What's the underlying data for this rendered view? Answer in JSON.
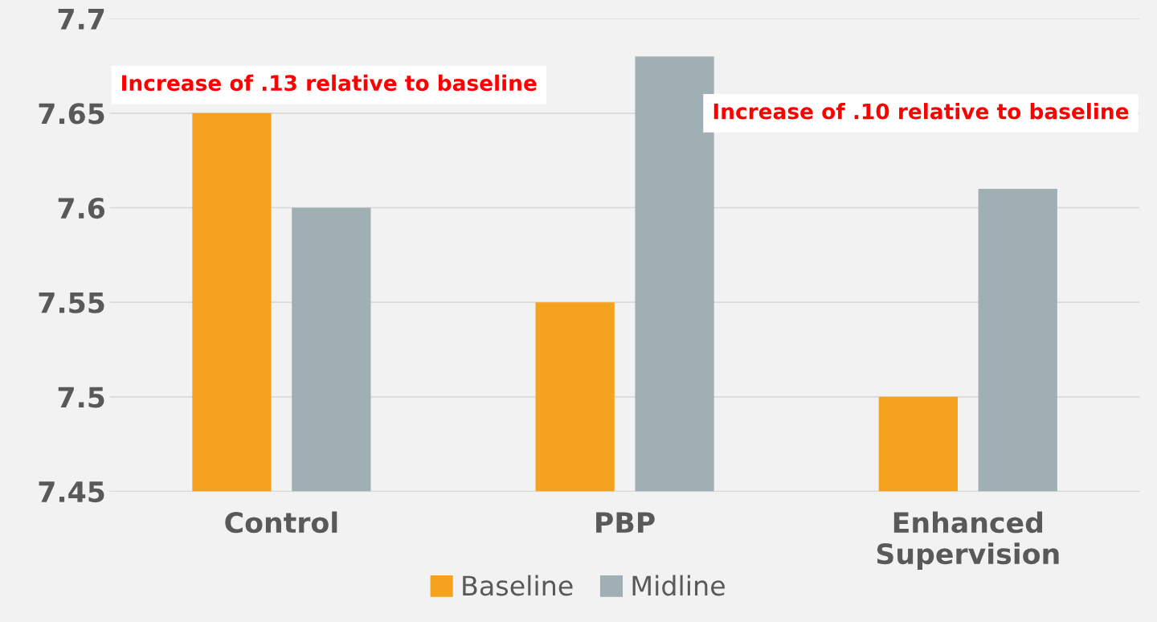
{
  "chart_data": {
    "type": "bar",
    "categories": [
      "Control",
      "PBP",
      "Enhanced\nSupervision"
    ],
    "series": [
      {
        "name": "Baseline",
        "color": "#f5a31f",
        "values": [
          7.65,
          7.55,
          7.5
        ]
      },
      {
        "name": "Midline",
        "color": "#9fafb4",
        "values": [
          7.6,
          7.68,
          7.61
        ]
      }
    ],
    "ylim": [
      7.45,
      7.7
    ],
    "yticks": [
      7.45,
      7.5,
      7.55,
      7.6,
      7.65,
      7.7
    ],
    "grid": "y",
    "legend": "bottom",
    "annotations": [
      "Increase of .13 relative to baseline",
      "Increase of .10 relative to baseline"
    ]
  }
}
